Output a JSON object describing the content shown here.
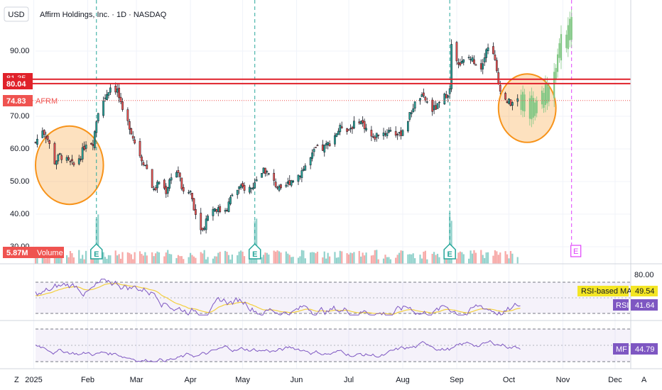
{
  "header": {
    "currency": "USD",
    "title": "Affirm Holdings, Inc. · 1D · NASDAQ"
  },
  "price_axis": {
    "ticks": [
      "90.00",
      "70.00",
      "60.00",
      "50.00",
      "40.00",
      "30.00"
    ]
  },
  "badges": {
    "resistance_top": "81.35",
    "resistance": "80.04",
    "last_price": "74.83",
    "ticker": "AFRM",
    "volume_value": "5.87M",
    "volume_label": "Volume"
  },
  "rsi_panel": {
    "top_value": "80.00",
    "ma_label": "RSI-based MA",
    "ma_value": "49.54",
    "rsi_label": "RSI",
    "rsi_value": "41.64"
  },
  "mf_panel": {
    "label": "MF",
    "value": "44.79"
  },
  "time_axis": {
    "labels": [
      "2025",
      "Feb",
      "Mar",
      "Apr",
      "May",
      "Jun",
      "Jul",
      "Aug",
      "Sep",
      "Oct",
      "Nov",
      "Dec"
    ]
  },
  "earnings_marker": "E",
  "bottom_left_icon": "Z",
  "bottom_right_label": "A",
  "colors": {
    "up": "#26a69a",
    "down": "#ef5350",
    "resistance": "#e0212a",
    "highlight": "#f7931a",
    "rsi": "#7e57c2",
    "projection": "#81c784",
    "future_marker": "#e040fb"
  },
  "chart_data": {
    "type": "candlestick",
    "symbol": "AFRM",
    "interval": "1D",
    "ylim": [
      28,
      100
    ],
    "x_range": [
      "2025-01-02",
      "2025-12-10"
    ],
    "resistance_levels": [
      80.04,
      81.35
    ],
    "last_price": 74.83,
    "earnings_dates": [
      "2025-02-06",
      "2025-05-08",
      "2025-08-28"
    ],
    "upcoming_earnings_date": "2025-11-06",
    "highlight_regions": [
      {
        "start": "2025-01-02",
        "end": "2025-02-10",
        "low": 43,
        "high": 67
      },
      {
        "start": "2025-09-25",
        "end": "2025-10-28",
        "low": 62,
        "high": 83
      }
    ],
    "close_series": [
      [
        "2025-01-02",
        62
      ],
      [
        "2025-01-06",
        66
      ],
      [
        "2025-01-09",
        63
      ],
      [
        "2025-01-13",
        56
      ],
      [
        "2025-01-16",
        58
      ],
      [
        "2025-01-21",
        56
      ],
      [
        "2025-01-24",
        55
      ],
      [
        "2025-01-28",
        58
      ],
      [
        "2025-01-31",
        62
      ],
      [
        "2025-02-04",
        62
      ],
      [
        "2025-02-07",
        72
      ],
      [
        "2025-02-11",
        76
      ],
      [
        "2025-02-14",
        79
      ],
      [
        "2025-02-18",
        78
      ],
      [
        "2025-02-21",
        71
      ],
      [
        "2025-02-25",
        67
      ],
      [
        "2025-02-28",
        62
      ],
      [
        "2025-03-04",
        57
      ],
      [
        "2025-03-07",
        54
      ],
      [
        "2025-03-11",
        47
      ],
      [
        "2025-03-14",
        50
      ],
      [
        "2025-03-18",
        47
      ],
      [
        "2025-03-21",
        52
      ],
      [
        "2025-03-25",
        53
      ],
      [
        "2025-03-28",
        46
      ],
      [
        "2025-04-01",
        47
      ],
      [
        "2025-04-04",
        40
      ],
      [
        "2025-04-08",
        35
      ],
      [
        "2025-04-11",
        40
      ],
      [
        "2025-04-15",
        42
      ],
      [
        "2025-04-18",
        41
      ],
      [
        "2025-04-22",
        42
      ],
      [
        "2025-04-25",
        46
      ],
      [
        "2025-04-29",
        48
      ],
      [
        "2025-05-02",
        48
      ],
      [
        "2025-05-06",
        48
      ],
      [
        "2025-05-09",
        50
      ],
      [
        "2025-05-13",
        54
      ],
      [
        "2025-05-16",
        52
      ],
      [
        "2025-05-20",
        49
      ],
      [
        "2025-05-23",
        47
      ],
      [
        "2025-05-28",
        50
      ],
      [
        "2025-06-02",
        52
      ],
      [
        "2025-06-05",
        54
      ],
      [
        "2025-06-09",
        57
      ],
      [
        "2025-06-12",
        60
      ],
      [
        "2025-06-16",
        60
      ],
      [
        "2025-06-20",
        62
      ],
      [
        "2025-06-24",
        65
      ],
      [
        "2025-06-27",
        67
      ],
      [
        "2025-07-01",
        66
      ],
      [
        "2025-07-07",
        69
      ],
      [
        "2025-07-10",
        67
      ],
      [
        "2025-07-15",
        63
      ],
      [
        "2025-07-18",
        65
      ],
      [
        "2025-07-22",
        65
      ],
      [
        "2025-07-25",
        66
      ],
      [
        "2025-07-30",
        64
      ],
      [
        "2025-08-04",
        69
      ],
      [
        "2025-08-07",
        73
      ],
      [
        "2025-08-11",
        76
      ],
      [
        "2025-08-14",
        75
      ],
      [
        "2025-08-18",
        72
      ],
      [
        "2025-08-21",
        73
      ],
      [
        "2025-08-25",
        76
      ],
      [
        "2025-08-28",
        78
      ],
      [
        "2025-08-29",
        91
      ],
      [
        "2025-09-03",
        86
      ],
      [
        "2025-09-08",
        88
      ],
      [
        "2025-09-11",
        87
      ],
      [
        "2025-09-15",
        85
      ],
      [
        "2025-09-18",
        91
      ],
      [
        "2025-09-22",
        90
      ],
      [
        "2025-09-25",
        80
      ],
      [
        "2025-09-29",
        75
      ],
      [
        "2025-10-02",
        74
      ],
      [
        "2025-10-06",
        74.83
      ]
    ],
    "projection_series": [
      [
        "2025-10-08",
        74
      ],
      [
        "2025-10-13",
        72
      ],
      [
        "2025-10-16",
        73
      ],
      [
        "2025-10-20",
        75
      ],
      [
        "2025-10-23",
        77
      ],
      [
        "2025-10-27",
        79
      ],
      [
        "2025-10-30",
        90
      ],
      [
        "2025-11-03",
        93
      ],
      [
        "2025-11-06",
        97
      ]
    ],
    "volume": {
      "last": "5.87M",
      "spikes": [
        "2025-02-07",
        "2025-05-09",
        "2025-08-29"
      ]
    },
    "rsi": {
      "last": 41.64,
      "ma": 49.54,
      "upper_band": 70,
      "lower_band": 30
    },
    "money_flow": {
      "last": 44.79
    },
    "panels": [
      "price",
      "volume",
      "RSI",
      "MF"
    ]
  }
}
